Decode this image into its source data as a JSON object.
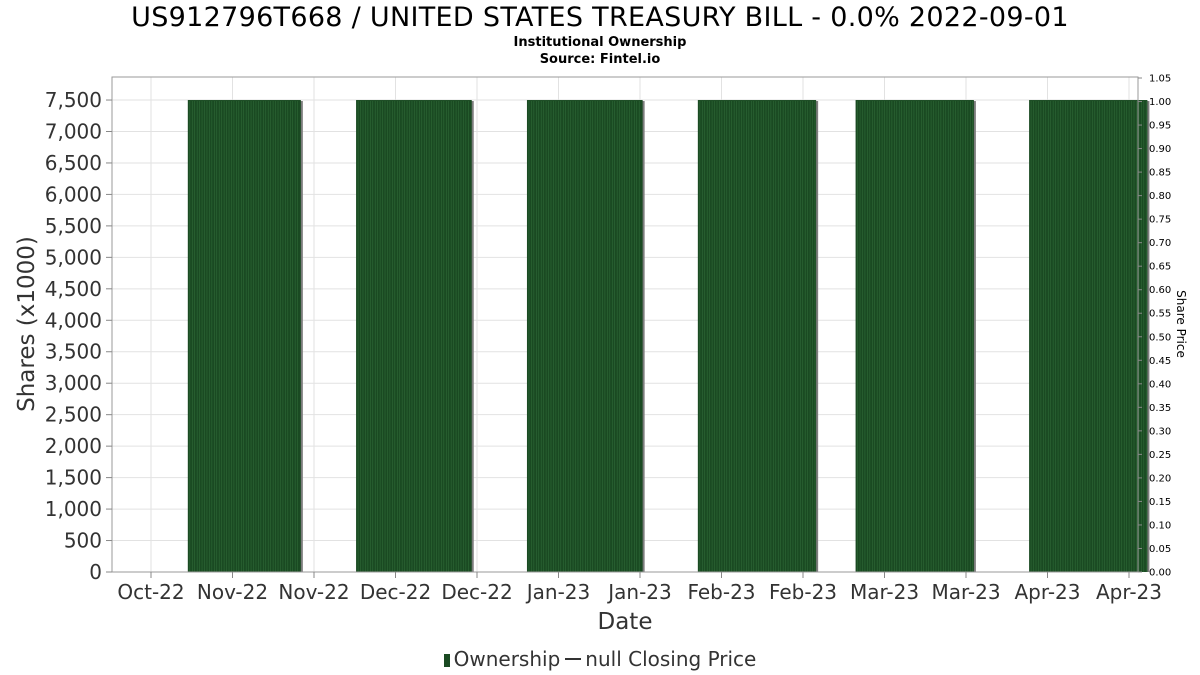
{
  "chart_data": {
    "type": "bar",
    "title": "US912796T668 / UNITED STATES TREASURY BILL - 0.0% 2022-09-01",
    "subtitle": "Institutional Ownership",
    "source": "Source: Fintel.io",
    "xlabel": "Date",
    "ylabel": "Shares (x1000)",
    "ylabel_right": "Share Price",
    "x_tick_labels": [
      "Oct-22",
      "Nov-22",
      "Nov-22",
      "Dec-22",
      "Dec-22",
      "Jan-23",
      "Jan-23",
      "Feb-23",
      "Feb-23",
      "Mar-23",
      "Mar-23",
      "Apr-23",
      "Apr-23"
    ],
    "y_tick_labels": [
      "0",
      "500",
      "1,000",
      "1,500",
      "2,000",
      "2,500",
      "3,000",
      "3,500",
      "4,000",
      "4,500",
      "5,000",
      "5,500",
      "6,000",
      "6,500",
      "7,000",
      "7,500"
    ],
    "y2_tick_labels": [
      "0.00",
      "0.05",
      "0.10",
      "0.15",
      "0.20",
      "0.25",
      "0.30",
      "0.35",
      "0.40",
      "0.45",
      "0.50",
      "0.55",
      "0.60",
      "0.65",
      "0.70",
      "0.75",
      "0.80",
      "0.85",
      "0.90",
      "0.95",
      "1.00",
      "1.05"
    ],
    "ylim": [
      0,
      7850
    ],
    "y2lim": [
      0,
      1.05
    ],
    "series": [
      {
        "name": "Ownership",
        "color": "#1a4a22",
        "periods": [
          {
            "start": "2022-10-15",
            "end": "2022-11-27",
            "value": 7500
          },
          {
            "start": "2022-12-18",
            "end": "2023-01-31",
            "value": 7500
          },
          {
            "start": "2023-02-21",
            "end": "2023-04-06",
            "value": 7500
          },
          {
            "start": "2023-04-27",
            "end": "2023-06-11",
            "value": 7500
          },
          {
            "start": "2023-06-26",
            "end": "2023-08-10",
            "value": 7500
          },
          {
            "start": "2023-08-31",
            "end": "2023-10-15",
            "value": 7500
          }
        ]
      },
      {
        "name": "null Closing Price",
        "color": "#333333",
        "values": []
      }
    ],
    "grid": true,
    "legend": "bottom"
  },
  "legend": {
    "bar_label": "Ownership",
    "line_label": "null Closing Price"
  }
}
